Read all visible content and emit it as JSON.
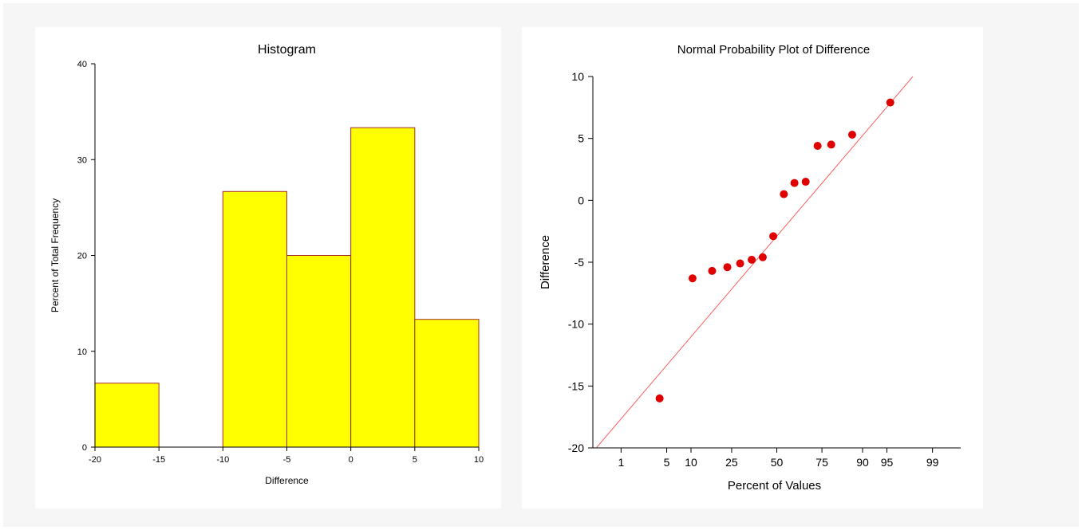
{
  "chart_data": [
    {
      "type": "bar",
      "title": "Histogram",
      "xlabel": "Difference",
      "ylabel": "Percent of Total Frequency",
      "xlim": [
        -20,
        10
      ],
      "ylim": [
        0,
        40
      ],
      "x_ticks": [
        -20,
        -15,
        -10,
        -5,
        0,
        5,
        10
      ],
      "y_ticks": [
        0,
        10,
        20,
        30,
        40
      ],
      "bins": [
        {
          "start": -20,
          "end": -15,
          "value": 6.67
        },
        {
          "start": -15,
          "end": -10,
          "value": 0
        },
        {
          "start": -10,
          "end": -5,
          "value": 26.67
        },
        {
          "start": -5,
          "end": 0,
          "value": 20.0
        },
        {
          "start": 0,
          "end": 5,
          "value": 33.33
        },
        {
          "start": 5,
          "end": 10,
          "value": 13.33
        }
      ],
      "bar_fill": "#ffff00",
      "bar_stroke": "#a52a2a",
      "grid": false
    },
    {
      "type": "scatter",
      "title": "Normal Probability Plot of Difference",
      "xlabel": "Percent of Values",
      "ylabel": "Difference",
      "ylim": [
        -20,
        10
      ],
      "y_ticks": [
        -20,
        -15,
        -10,
        -5,
        0,
        5,
        10
      ],
      "x_scale": "normal-probability",
      "x_ticks": [
        1,
        5,
        10,
        25,
        50,
        75,
        90,
        95,
        99
      ],
      "points": [
        {
          "percent": 4.0,
          "y": -16.0
        },
        {
          "percent": 10.4,
          "y": -6.3
        },
        {
          "percent": 16.7,
          "y": -5.7
        },
        {
          "percent": 23.0,
          "y": -5.4
        },
        {
          "percent": 29.2,
          "y": -5.1
        },
        {
          "percent": 35.4,
          "y": -4.8
        },
        {
          "percent": 41.7,
          "y": -4.6
        },
        {
          "percent": 47.9,
          "y": -2.9
        },
        {
          "percent": 54.2,
          "y": 0.5
        },
        {
          "percent": 60.4,
          "y": 1.4
        },
        {
          "percent": 66.7,
          "y": 1.5
        },
        {
          "percent": 72.9,
          "y": 4.4
        },
        {
          "percent": 79.2,
          "y": 4.5
        },
        {
          "percent": 87.0,
          "y": 5.3
        },
        {
          "percent": 95.5,
          "y": 7.9
        }
      ],
      "reference_line": [
        {
          "percent": 0.35,
          "y": -20
        },
        {
          "percent": 97.9,
          "y": 10
        }
      ],
      "point_color": "#e00000",
      "line_color": "#ff6060",
      "grid": false
    }
  ]
}
